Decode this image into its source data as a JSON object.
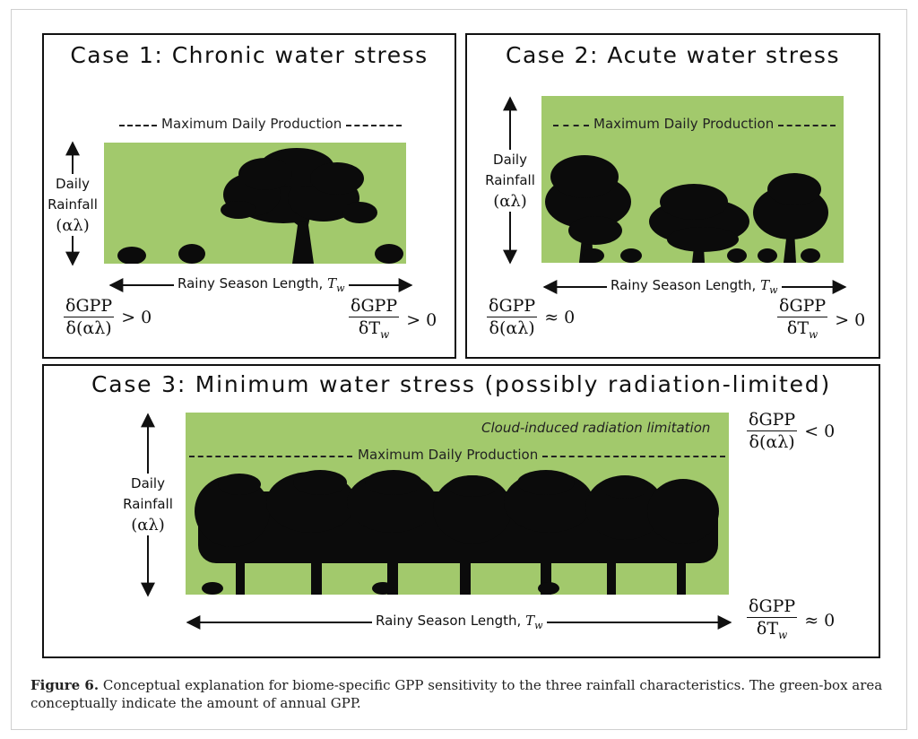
{
  "figure": {
    "case1": {
      "title": "Case 1: Chronic water stress",
      "max_production": "Maximum Daily Production",
      "rainfall_label": [
        "Daily",
        "Rainfall",
        "(αλ)"
      ],
      "season_label": "Rainy Season Length, ",
      "season_var": "T",
      "season_sub": "w",
      "sens_rain": {
        "num": "δGPP",
        "den": "δ(αλ)",
        "rel": "> 0"
      },
      "sens_season": {
        "num": "δGPP",
        "den": "δT",
        "den_sub": "w",
        "rel": "> 0"
      }
    },
    "case2": {
      "title": "Case 2: Acute water stress",
      "max_production": "Maximum Daily Production",
      "rainfall_label": [
        "Daily",
        "Rainfall",
        "(αλ)"
      ],
      "season_label": "Rainy Season Length, ",
      "season_var": "T",
      "season_sub": "w",
      "sens_rain": {
        "num": "δGPP",
        "den": "δ(αλ)",
        "rel": "≈ 0"
      },
      "sens_season": {
        "num": "δGPP",
        "den": "δT",
        "den_sub": "w",
        "rel": "> 0"
      }
    },
    "case3": {
      "title": "Case 3: Minimum water stress (possibly radiation-limited)",
      "cloud_note": "Cloud-induced radiation limitation",
      "max_production": "Maximum Daily Production",
      "rainfall_label": [
        "Daily",
        "Rainfall",
        "(αλ)"
      ],
      "season_label": "Rainy Season Length, ",
      "season_var": "T",
      "season_sub": "w",
      "sens_rain": {
        "num": "δGPP",
        "den": "δ(αλ)",
        "rel": "< 0"
      },
      "sens_season": {
        "num": "δGPP",
        "den": "δT",
        "den_sub": "w",
        "rel": "≈ 0"
      }
    },
    "caption": {
      "label": "Figure 6.",
      "text": " Conceptual explanation for biome-specific GPP sensitivity to the three rainfall characteristics. The green-box area conceptually indicate the amount of annual GPP."
    },
    "colors": {
      "green_box": "#a2c96c",
      "ink": "#111111"
    }
  }
}
